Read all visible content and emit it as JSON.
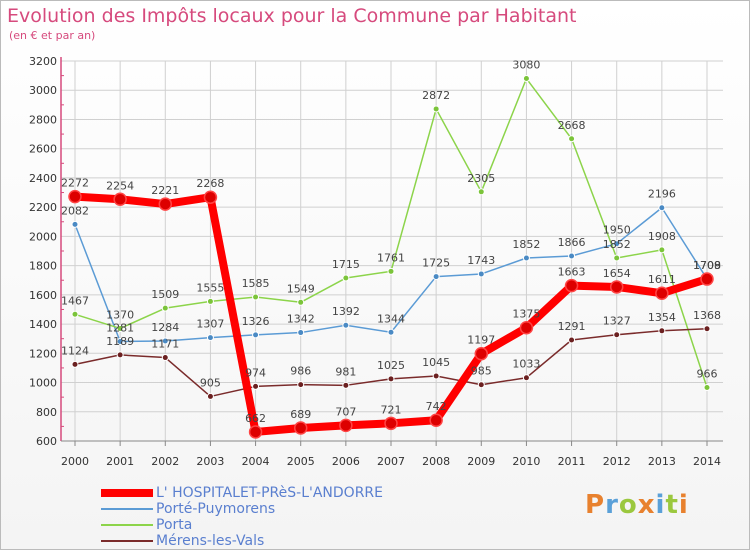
{
  "title": "Evolution des Impôts locaux pour la Commune par Habitant",
  "subtitle": "(en € et par an)",
  "logo": {
    "text": "Proxiti",
    "letter_colors": [
      "#e8812e",
      "#5aa0d8",
      "#9bc83e",
      "#e8812e",
      "#5aa0d8",
      "#9bc83e",
      "#e8812e"
    ]
  },
  "chart_data": {
    "type": "line",
    "title": "Evolution des Impôts locaux pour la Commune par Habitant",
    "subtitle": "(en € et par an)",
    "xlabel": "",
    "ylabel": "",
    "ylim": [
      600,
      3200
    ],
    "yticks": [
      600,
      800,
      1000,
      1200,
      1400,
      1600,
      1800,
      2000,
      2200,
      2400,
      2600,
      2800,
      3000,
      3200
    ],
    "grid": true,
    "legend_position": "bottom-left",
    "categories": [
      "2000",
      "2001",
      "2002",
      "2003",
      "2004",
      "2005",
      "2006",
      "2007",
      "2008",
      "2009",
      "2010",
      "2011",
      "2012",
      "2013",
      "2014"
    ],
    "series": [
      {
        "name": "L' HOSPITALET-PRèS-L'ANDORRE",
        "color": "#ff0000",
        "marker_color": "#dd0000",
        "emphasis": true,
        "values": [
          2272,
          2254,
          2221,
          2268,
          662,
          689,
          707,
          721,
          742,
          1197,
          1375,
          1663,
          1654,
          1611,
          1708
        ]
      },
      {
        "name": "Porté-Puymorens",
        "color": "#5b9bd5",
        "marker_color": "#4a8ac4",
        "emphasis": false,
        "values": [
          2082,
          1281,
          1284,
          1307,
          1326,
          1342,
          1392,
          1344,
          1725,
          1743,
          1852,
          1866,
          1950,
          2196,
          1709
        ]
      },
      {
        "name": "Porta",
        "color": "#8cd44a",
        "marker_color": "#7bc43a",
        "emphasis": false,
        "values": [
          1467,
          1370,
          1509,
          1555,
          1585,
          1549,
          1715,
          1761,
          2872,
          2305,
          3080,
          2668,
          1852,
          1908,
          966
        ]
      },
      {
        "name": "Mérens-les-Vals",
        "color": "#7a2b2b",
        "marker_color": "#6b2020",
        "emphasis": false,
        "values": [
          1124,
          1189,
          1171,
          905,
          974,
          986,
          981,
          1025,
          1045,
          985,
          1033,
          1291,
          1327,
          1354,
          1368
        ]
      }
    ]
  }
}
